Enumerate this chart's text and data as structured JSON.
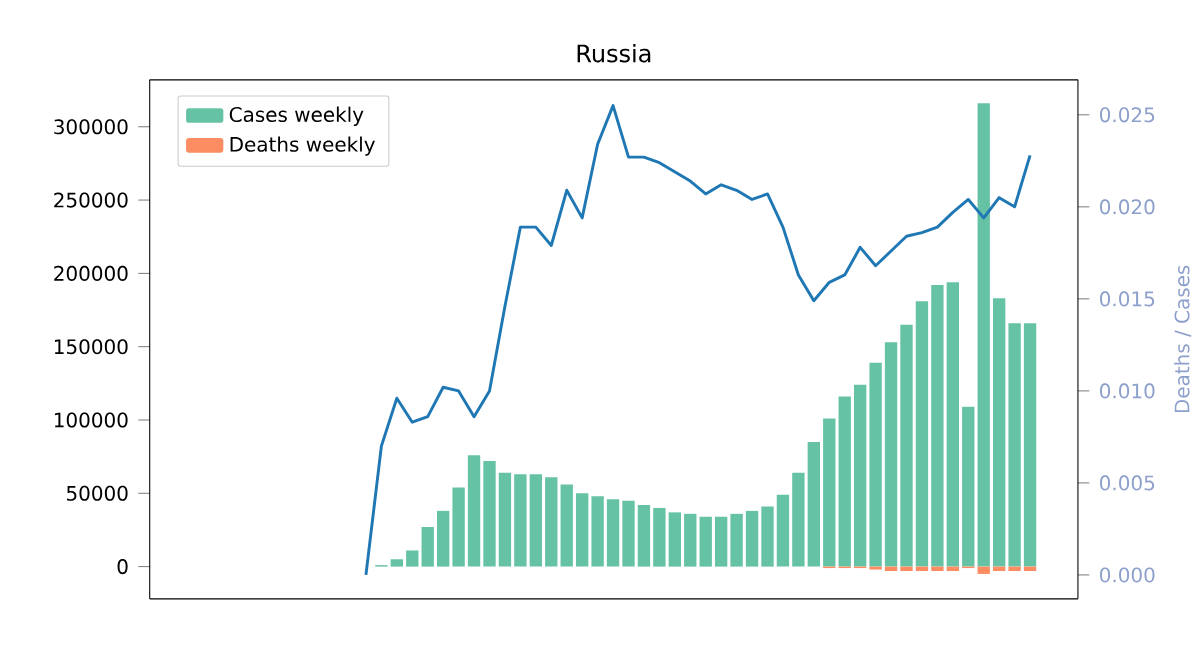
{
  "chart_data": {
    "type": "bar",
    "title": "Russia",
    "y2label": "Deaths / Cases",
    "categories": [
      null,
      null,
      null,
      null,
      null,
      null,
      null,
      null,
      null,
      null,
      null,
      null,
      null,
      null,
      null,
      null,
      null,
      null,
      null,
      null,
      null,
      null,
      null,
      null,
      null,
      null,
      null,
      null,
      null,
      null,
      null,
      null,
      null,
      null,
      null,
      null,
      null,
      null,
      null,
      null,
      null,
      null,
      null,
      null
    ],
    "series": [
      {
        "name": "Cases weekly",
        "color": "#66c2a5",
        "values": [
          0,
          1000,
          5000,
          11000,
          27000,
          38000,
          54000,
          76000,
          72000,
          64000,
          63000,
          63000,
          61000,
          56000,
          50000,
          48000,
          46000,
          45000,
          42000,
          40000,
          37000,
          36000,
          34000,
          34000,
          36000,
          38000,
          41000,
          49000,
          64000,
          85000,
          101000,
          116000,
          124000,
          139000,
          153000,
          165000,
          181000,
          192000,
          194000,
          109000,
          316000,
          183000,
          166000,
          166000
        ]
      },
      {
        "name": "Deaths weekly",
        "color": "#fc8d62",
        "values": [
          null,
          null,
          null,
          null,
          null,
          null,
          null,
          null,
          null,
          null,
          null,
          null,
          null,
          null,
          null,
          null,
          null,
          null,
          null,
          null,
          null,
          null,
          null,
          null,
          null,
          null,
          null,
          null,
          null,
          null,
          -1000,
          -1000,
          -1000,
          -2000,
          -3000,
          -3000,
          -3000,
          -3000,
          -3000,
          -1000,
          -5000,
          -3000,
          -3000,
          -3000
        ]
      },
      {
        "type": "line",
        "axis": "y2",
        "color": "#1f77b4",
        "values": [
          0.0,
          0.007,
          0.0096,
          0.0083,
          0.0086,
          0.0102,
          0.01,
          0.0086,
          0.01,
          0.0146,
          0.0189,
          0.0189,
          0.0179,
          0.0209,
          0.0194,
          0.0234,
          0.0255,
          0.0227,
          0.0227,
          0.0224,
          0.0219,
          0.0214,
          0.0207,
          0.0212,
          0.0209,
          0.0204,
          0.0207,
          0.0189,
          0.0163,
          0.0149,
          0.0159,
          0.0163,
          0.0178,
          0.0168,
          0.0176,
          0.0184,
          0.0186,
          0.0189,
          0.0197,
          0.0204,
          0.0194,
          0.0205,
          0.02,
          0.0228
        ]
      }
    ],
    "ylim": [
      -22000,
      332000
    ],
    "yticks": [
      0,
      50000,
      100000,
      150000,
      200000,
      250000,
      300000
    ],
    "y2lim": [
      -0.0013,
      0.0269
    ],
    "y2ticks": [
      {
        "value": 0,
        "label": "0.000"
      },
      {
        "value": 0.005,
        "label": "0.005"
      },
      {
        "value": 0.01,
        "label": "0.010"
      },
      {
        "value": 0.015,
        "label": "0.015"
      },
      {
        "value": 0.02,
        "label": "0.020"
      },
      {
        "value": 0.025,
        "label": "0.025"
      }
    ],
    "tick_labels": "y",
    "legend": "top left",
    "grid": false,
    "marker": "none",
    "line_style": "solid"
  }
}
